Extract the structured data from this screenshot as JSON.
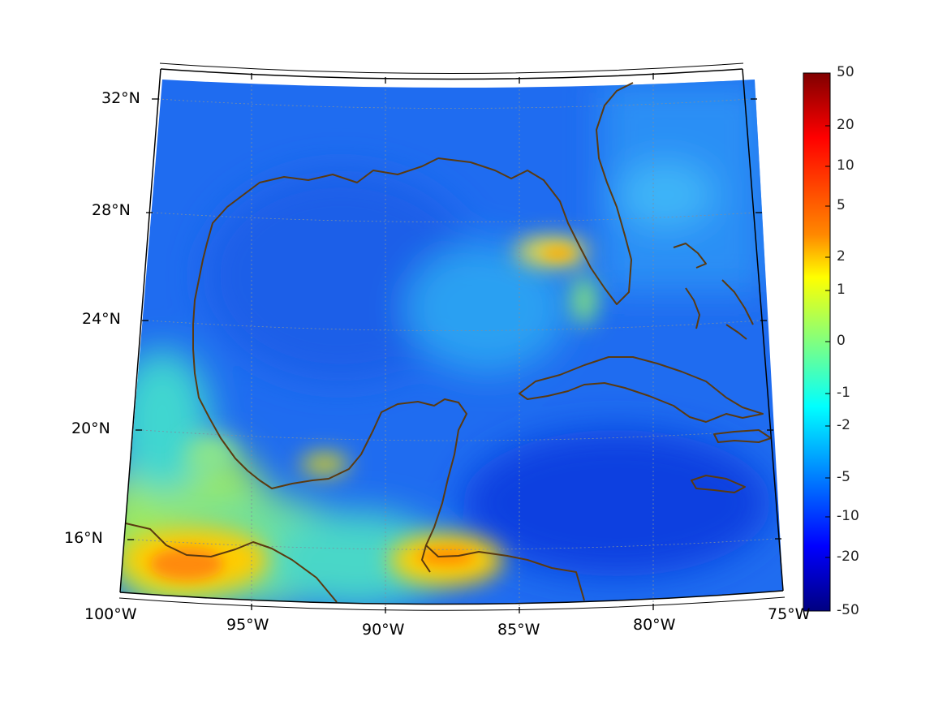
{
  "map": {
    "region": "Gulf of Mexico / Caribbean",
    "projection": "conic",
    "lon_labels": [
      "100°W",
      "95°W",
      "90°W",
      "85°W",
      "80°W",
      "75°W"
    ],
    "lat_labels": [
      "16°N",
      "20°N",
      "24°N",
      "28°N",
      "32°N"
    ],
    "coastline_color": "#5a3a10"
  },
  "colorbar": {
    "colormap": "jet",
    "scale": "symmetric-log",
    "tick_labels": [
      "50",
      "20",
      "10",
      "5",
      "2",
      "1",
      "0",
      "-1",
      "-2",
      "-5",
      "-10",
      "-20",
      "-50"
    ],
    "range": [
      -50,
      50
    ]
  },
  "chart_data": {
    "type": "heatmap",
    "title": "",
    "xlabel": "",
    "ylabel": "",
    "x_range": [
      "100°W",
      "75°W"
    ],
    "y_range": [
      "~14.5°N",
      "~33°N"
    ],
    "grid": true,
    "legend": "colorbar right",
    "features": [
      {
        "area": "Pacific coast of southern Mexico",
        "value_range": [
          2,
          5
        ],
        "note": "orange/yellow positive values"
      },
      {
        "area": "Gulf of Honduras / northern Honduras coast",
        "value_range": [
          2,
          5
        ]
      },
      {
        "area": "West of Tampa, Florida",
        "value_range": [
          1,
          2
        ]
      },
      {
        "area": "Bay of Campeche coast",
        "value_range": [
          1,
          2
        ]
      },
      {
        "area": "Central and western Gulf of Mexico",
        "value_range": [
          -10,
          -5
        ]
      },
      {
        "area": "Caribbean Sea south of Cuba",
        "value_range": [
          -20,
          -10
        ]
      },
      {
        "area": "Atlantic east of Florida",
        "value_range": [
          -10,
          -2
        ]
      }
    ]
  }
}
